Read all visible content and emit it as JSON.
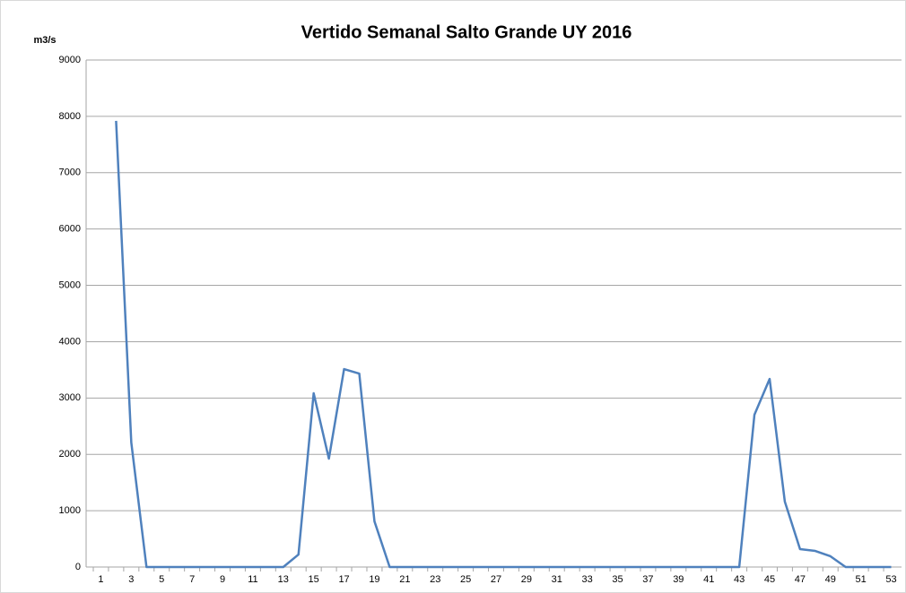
{
  "chart_data": {
    "type": "line",
    "title": "Vertido Semanal Salto Grande UY 2016",
    "y_label": "m3/s",
    "categories": [
      1,
      null,
      3,
      null,
      5,
      null,
      7,
      null,
      9,
      null,
      11,
      null,
      13,
      null,
      15,
      null,
      17,
      null,
      19,
      null,
      21,
      null,
      23,
      null,
      25,
      null,
      27,
      null,
      29,
      null,
      31,
      null,
      33,
      null,
      35,
      null,
      37,
      null,
      39,
      null,
      41,
      null,
      43,
      null,
      45,
      null,
      47,
      null,
      49,
      null,
      51,
      null,
      53
    ],
    "series": [
      {
        "name": "Vertido",
        "color": "#4f81bd",
        "values": [
          null,
          7920,
          2210,
          0,
          0,
          0,
          0,
          0,
          0,
          0,
          0,
          0,
          0,
          222,
          3084,
          1924,
          3513,
          3434,
          810,
          0,
          0,
          0,
          0,
          0,
          0,
          0,
          0,
          0,
          0,
          0,
          0,
          0,
          0,
          0,
          0,
          0,
          0,
          0,
          0,
          0,
          0,
          0,
          0,
          2703,
          3339,
          1160,
          318,
          286,
          191,
          0,
          0,
          0,
          0
        ]
      }
    ],
    "ylim": [
      0,
      9000
    ],
    "yticks": [
      0,
      1000,
      2000,
      3000,
      4000,
      5000,
      6000,
      7000,
      8000,
      9000
    ],
    "grid": true
  }
}
